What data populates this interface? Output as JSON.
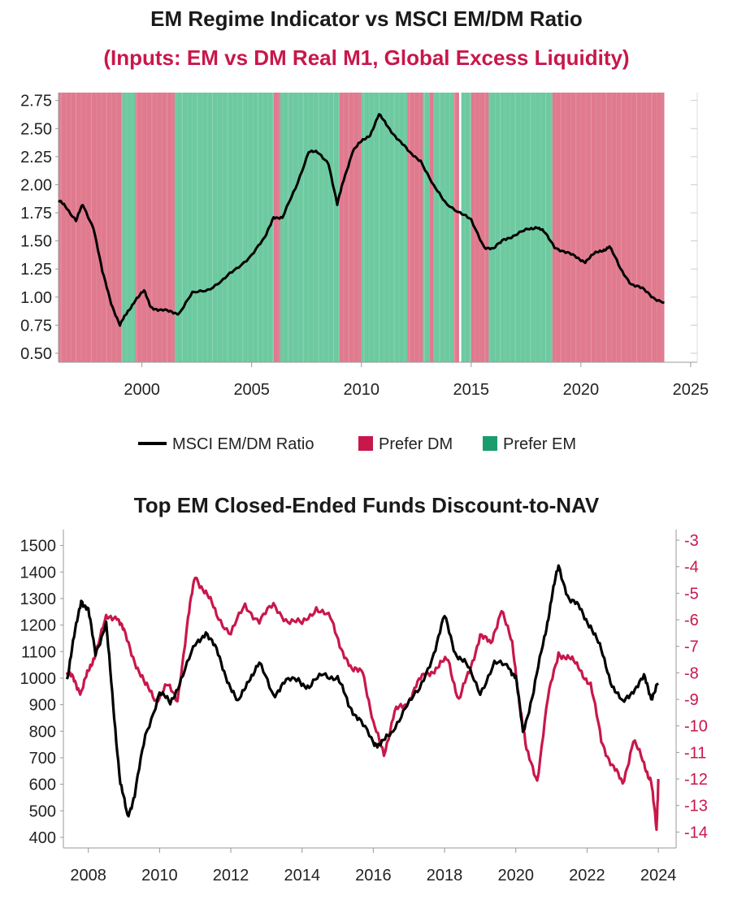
{
  "colors": {
    "prefer_dm": "#e07a8e",
    "prefer_em": "#6dc9a0",
    "legend_dm": "#c8174b",
    "legend_em": "#1a9d6c",
    "ratio_line": "#000000",
    "discount_line": "#c8174b",
    "subtitle": "#c8174b",
    "axis": "#999999"
  },
  "chart_data": [
    {
      "type": "line",
      "title": "EM Regime Indicator vs MSCI EM/DM Ratio",
      "subtitle": "(Inputs: EM vs DM Real M1, Global Excess Liquidity)",
      "xlim": [
        1996.2,
        2025.3
      ],
      "ylim": [
        0.42,
        2.82
      ],
      "x_ticks": [
        "2000",
        "2005",
        "2010",
        "2015",
        "2020",
        "2025"
      ],
      "y_ticks": [
        "0.50",
        "0.75",
        "1.00",
        "1.25",
        "1.50",
        "1.75",
        "2.00",
        "2.25",
        "2.50",
        "2.75"
      ],
      "grid": false,
      "legend_position": "bottom",
      "legend": [
        {
          "label": "MSCI EM/DM Ratio",
          "kind": "line"
        },
        {
          "label": "Prefer DM",
          "kind": "swatch-dm"
        },
        {
          "label": "Prefer EM",
          "kind": "swatch-em"
        }
      ],
      "regimes": [
        {
          "start": 1996.2,
          "end": 1999.1,
          "regime": "Prefer DM"
        },
        {
          "start": 1999.1,
          "end": 1999.7,
          "regime": "Prefer EM"
        },
        {
          "start": 1999.7,
          "end": 2001.5,
          "regime": "Prefer DM"
        },
        {
          "start": 2001.5,
          "end": 2006.0,
          "regime": "Prefer EM"
        },
        {
          "start": 2006.0,
          "end": 2006.3,
          "regime": "Prefer DM"
        },
        {
          "start": 2006.3,
          "end": 2009.0,
          "regime": "Prefer EM"
        },
        {
          "start": 2009.0,
          "end": 2010.0,
          "regime": "Prefer DM"
        },
        {
          "start": 2010.0,
          "end": 2012.1,
          "regime": "Prefer EM"
        },
        {
          "start": 2012.1,
          "end": 2012.8,
          "regime": "Prefer DM"
        },
        {
          "start": 2012.8,
          "end": 2013.1,
          "regime": "Prefer EM"
        },
        {
          "start": 2013.1,
          "end": 2013.3,
          "regime": "Prefer DM"
        },
        {
          "start": 2013.3,
          "end": 2014.2,
          "regime": "Prefer EM"
        },
        {
          "start": 2014.2,
          "end": 2014.45,
          "regime": "Prefer DM"
        },
        {
          "start": 2014.55,
          "end": 2015.0,
          "regime": "Prefer EM"
        },
        {
          "start": 2015.0,
          "end": 2015.8,
          "regime": "Prefer DM"
        },
        {
          "start": 2015.8,
          "end": 2018.7,
          "regime": "Prefer EM"
        },
        {
          "start": 2018.7,
          "end": 2023.8,
          "regime": "Prefer DM"
        }
      ],
      "series": [
        {
          "name": "MSCI EM/DM Ratio",
          "x": [
            1996.2,
            1996.5,
            1997.0,
            1997.3,
            1997.8,
            1998.2,
            1998.6,
            1999.0,
            1999.3,
            1999.7,
            2000.1,
            2000.4,
            2000.8,
            2001.3,
            2001.7,
            2002.3,
            2003.0,
            2003.7,
            2004.3,
            2005.0,
            2005.6,
            2006.0,
            2006.4,
            2007.0,
            2007.6,
            2008.0,
            2008.5,
            2008.9,
            2009.2,
            2009.6,
            2010.0,
            2010.4,
            2010.8,
            2011.2,
            2011.7,
            2012.2,
            2012.7,
            2013.3,
            2013.8,
            2014.5,
            2015.0,
            2015.6,
            2016.0,
            2016.5,
            2017.0,
            2017.6,
            2018.0,
            2018.3,
            2018.8,
            2019.3,
            2019.8,
            2020.2,
            2020.6,
            2021.0,
            2021.3,
            2021.8,
            2022.3,
            2022.8,
            2023.3,
            2023.8
          ],
          "values": [
            1.85,
            1.82,
            1.68,
            1.82,
            1.62,
            1.22,
            0.95,
            0.75,
            0.85,
            0.98,
            1.05,
            0.92,
            0.88,
            0.87,
            0.86,
            1.03,
            1.07,
            1.15,
            1.25,
            1.38,
            1.52,
            1.72,
            1.7,
            1.97,
            2.3,
            2.28,
            2.2,
            1.82,
            2.05,
            2.3,
            2.38,
            2.45,
            2.62,
            2.52,
            2.4,
            2.28,
            2.22,
            1.98,
            1.85,
            1.75,
            1.68,
            1.45,
            1.42,
            1.52,
            1.55,
            1.6,
            1.63,
            1.58,
            1.45,
            1.4,
            1.35,
            1.32,
            1.38,
            1.42,
            1.45,
            1.25,
            1.12,
            1.07,
            1.0,
            0.95
          ]
        }
      ]
    },
    {
      "type": "line",
      "title": "Top EM Closed-Ended Funds Discount-to-NAV",
      "xlim": [
        2007.3,
        2024.5
      ],
      "ylim_left": [
        360,
        1560
      ],
      "ylim_right": [
        -14.6,
        -2.6
      ],
      "x_ticks": [
        "2008",
        "2010",
        "2012",
        "2014",
        "2016",
        "2018",
        "2020",
        "2022",
        "2024"
      ],
      "y_ticks_left": [
        "400",
        "500",
        "600",
        "700",
        "800",
        "900",
        "1000",
        "1100",
        "1200",
        "1300",
        "1400",
        "1500"
      ],
      "y_ticks_right": [
        "-14",
        "-13",
        "-12",
        "-11",
        "-10",
        "-9",
        "-8",
        "-7",
        "-6",
        "-5",
        "-4",
        "-3"
      ],
      "grid": false,
      "series": [
        {
          "axis": "left",
          "x": [
            2007.4,
            2007.6,
            2007.8,
            2008.0,
            2008.2,
            2008.5,
            2008.7,
            2008.9,
            2009.1,
            2009.3,
            2009.6,
            2010.0,
            2010.3,
            2010.6,
            2011.0,
            2011.3,
            2011.6,
            2011.9,
            2012.2,
            2012.5,
            2012.8,
            2013.2,
            2013.5,
            2013.9,
            2014.2,
            2014.6,
            2015.0,
            2015.3,
            2015.6,
            2016.0,
            2016.2,
            2016.5,
            2016.9,
            2017.3,
            2017.7,
            2018.0,
            2018.3,
            2018.6,
            2019.0,
            2019.4,
            2019.8,
            2020.0,
            2020.2,
            2020.5,
            2020.8,
            2021.0,
            2021.2,
            2021.5,
            2021.8,
            2022.1,
            2022.4,
            2022.7,
            2023.0,
            2023.3,
            2023.6,
            2023.8,
            2024.0
          ],
          "values": [
            1000,
            1150,
            1300,
            1250,
            1100,
            1200,
            900,
            600,
            480,
            560,
            780,
            950,
            900,
            1000,
            1120,
            1180,
            1100,
            1000,
            900,
            1000,
            1050,
            940,
            980,
            1000,
            960,
            1020,
            1000,
            900,
            850,
            750,
            760,
            780,
            900,
            950,
            1100,
            1230,
            1100,
            1050,
            950,
            1050,
            1050,
            1000,
            800,
            950,
            1150,
            1300,
            1420,
            1300,
            1260,
            1200,
            1100,
            980,
            900,
            960,
            1000,
            930,
            980
          ]
        },
        {
          "axis": "right",
          "x": [
            2007.4,
            2007.6,
            2007.8,
            2008.0,
            2008.2,
            2008.5,
            2008.8,
            2009.0,
            2009.3,
            2009.6,
            2009.9,
            2010.2,
            2010.5,
            2010.8,
            2011.0,
            2011.3,
            2011.6,
            2012.0,
            2012.4,
            2012.8,
            2013.2,
            2013.6,
            2014.0,
            2014.4,
            2014.8,
            2015.1,
            2015.4,
            2015.7,
            2016.0,
            2016.3,
            2016.6,
            2016.9,
            2017.2,
            2017.5,
            2017.8,
            2018.1,
            2018.4,
            2018.7,
            2019.0,
            2019.3,
            2019.6,
            2019.9,
            2020.1,
            2020.3,
            2020.6,
            2020.9,
            2021.2,
            2021.5,
            2021.8,
            2022.1,
            2022.4,
            2022.7,
            2023.0,
            2023.3,
            2023.6,
            2023.8,
            2023.95,
            2024.0
          ],
          "values": [
            -8.0,
            -8.3,
            -8.7,
            -8.0,
            -7.2,
            -6.0,
            -5.8,
            -6.5,
            -7.5,
            -8.5,
            -9.0,
            -8.5,
            -9.0,
            -6.0,
            -4.3,
            -5.0,
            -5.8,
            -6.5,
            -5.5,
            -6.0,
            -5.5,
            -6.0,
            -6.2,
            -5.5,
            -6.0,
            -7.0,
            -8.0,
            -7.8,
            -10.0,
            -11.0,
            -9.5,
            -9.2,
            -8.5,
            -8.0,
            -7.8,
            -7.5,
            -9.0,
            -8.0,
            -6.5,
            -7.0,
            -5.5,
            -7.0,
            -9.0,
            -11.0,
            -12.0,
            -9.0,
            -7.2,
            -7.5,
            -7.8,
            -8.5,
            -10.5,
            -11.5,
            -12.2,
            -10.5,
            -11.5,
            -12.0,
            -14.0,
            -12.0
          ]
        }
      ]
    }
  ]
}
